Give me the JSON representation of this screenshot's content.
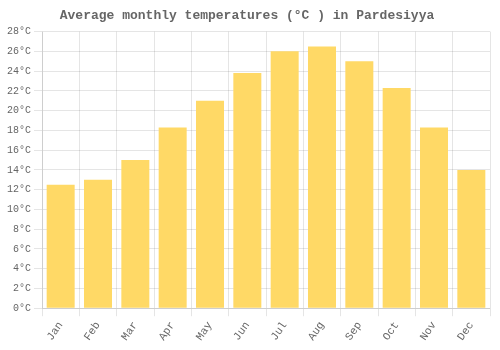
{
  "chart_data": {
    "type": "bar",
    "title": "Average monthly temperatures (°C ) in Pardesiyya",
    "categories": [
      "Jan",
      "Feb",
      "Mar",
      "Apr",
      "May",
      "Jun",
      "Jul",
      "Aug",
      "Sep",
      "Oct",
      "Nov",
      "Dec"
    ],
    "values": [
      12.5,
      13.0,
      15.0,
      18.3,
      21.0,
      23.8,
      26.0,
      26.5,
      25.0,
      22.3,
      18.3,
      14.0
    ],
    "color": "#FFD966",
    "ylim": [
      0,
      28
    ],
    "yticks": [
      {
        "value": 0,
        "label": "0°C"
      },
      {
        "value": 2,
        "label": "2°C"
      },
      {
        "value": 4,
        "label": "4°C"
      },
      {
        "value": 6,
        "label": "6°C"
      },
      {
        "value": 8,
        "label": "8°C"
      },
      {
        "value": 10,
        "label": "10°C"
      },
      {
        "value": 12,
        "label": "12°C"
      },
      {
        "value": 14,
        "label": "14°C"
      },
      {
        "value": 16,
        "label": "16°C"
      },
      {
        "value": 18,
        "label": "18°C"
      },
      {
        "value": 20,
        "label": "20°C"
      },
      {
        "value": 22,
        "label": "22°C"
      },
      {
        "value": 24,
        "label": "24°C"
      },
      {
        "value": 26,
        "label": "26°C"
      },
      {
        "value": 28,
        "label": "28°C"
      }
    ],
    "grid": true
  }
}
